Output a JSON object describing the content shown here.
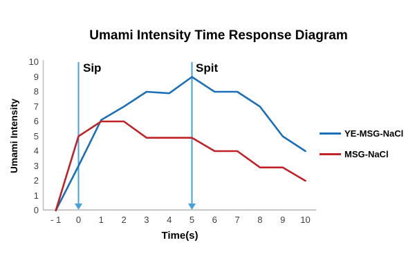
{
  "title": "Umami Intensity Time Response Diagram",
  "chart_data": {
    "type": "line",
    "title": "Umami Intensity Time Response Diagram",
    "xlabel": "Time(s)",
    "ylabel": "Umami Intensity",
    "x": [
      -1,
      0,
      1,
      2,
      3,
      4,
      5,
      6,
      7,
      8,
      9,
      10
    ],
    "x_tick_labels": [
      "- 1",
      "0",
      "1",
      "2",
      "3",
      "4",
      "5",
      "6",
      "7",
      "8",
      "9",
      "10"
    ],
    "y_ticks": [
      0,
      1,
      2,
      3,
      4,
      5,
      6,
      7,
      8,
      9,
      10
    ],
    "xlim": [
      -1,
      10
    ],
    "ylim": [
      0,
      10
    ],
    "grid": false,
    "legend_position": "right",
    "series": [
      {
        "name": "YE-MSG-NaCl",
        "color": "#1B6FB9",
        "values": [
          0,
          3,
          6.1,
          7,
          8,
          7.9,
          9,
          8,
          8,
          7,
          5,
          4
        ]
      },
      {
        "name": "MSG-NaCl",
        "color": "#C02127",
        "values": [
          0,
          5,
          6,
          6,
          4.9,
          4.9,
          4.9,
          4,
          4,
          2.9,
          2.9,
          2
        ]
      }
    ],
    "annotations": [
      {
        "label": "Sip",
        "x": 0
      },
      {
        "label": "Spit",
        "x": 5
      }
    ],
    "arrow_color": "#45A1DB",
    "axis_color": "#BFBFBF",
    "tick_text_color": "#3F3F3F"
  }
}
